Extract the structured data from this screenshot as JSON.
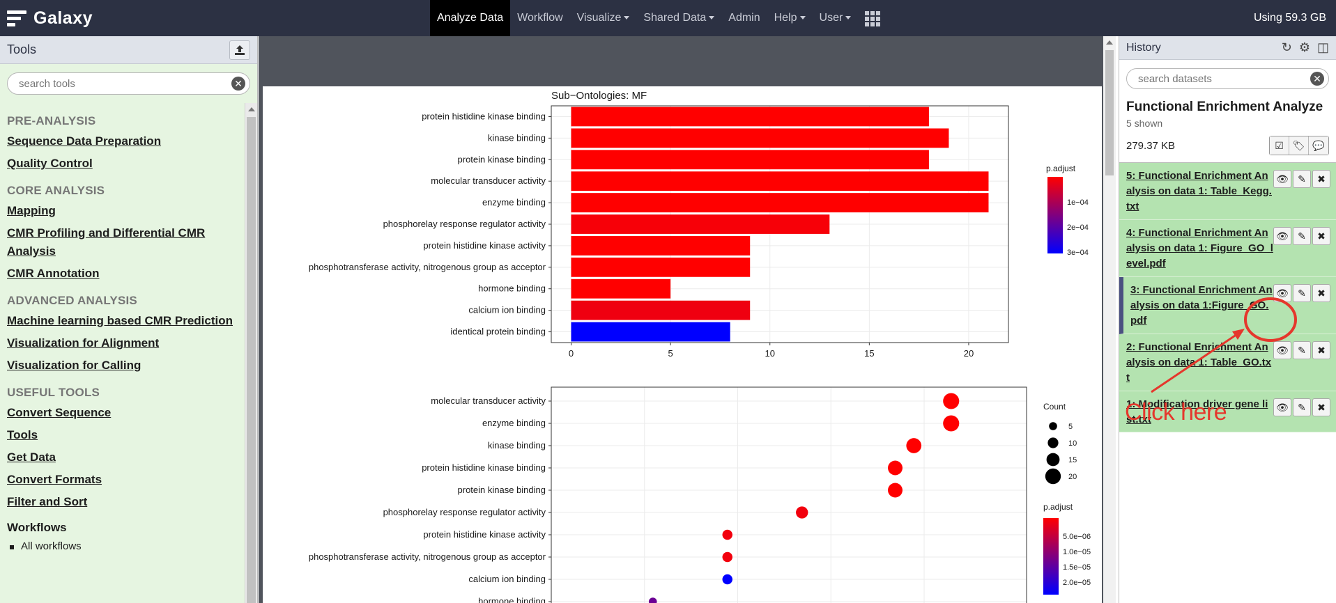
{
  "masthead": {
    "brand": "Galaxy",
    "nav": [
      {
        "label": "Analyze Data",
        "active": true,
        "dropdown": false
      },
      {
        "label": "Workflow",
        "active": false,
        "dropdown": false
      },
      {
        "label": "Visualize",
        "active": false,
        "dropdown": true
      },
      {
        "label": "Shared Data",
        "active": false,
        "dropdown": true
      },
      {
        "label": "Admin",
        "active": false,
        "dropdown": false
      },
      {
        "label": "Help",
        "active": false,
        "dropdown": true
      },
      {
        "label": "User",
        "active": false,
        "dropdown": true
      }
    ],
    "quota": "Using 59.3 GB"
  },
  "tools": {
    "title": "Tools",
    "search_placeholder": "search tools",
    "sections": [
      {
        "name": "PRE-ANALYSIS",
        "links": [
          "Sequence Data Preparation",
          "Quality Control"
        ]
      },
      {
        "name": "CORE ANALYSIS",
        "links": [
          "Mapping",
          "CMR Profiling and Differential CMR Analysis",
          "CMR Annotation"
        ]
      },
      {
        "name": "ADVANCED ANALYSIS",
        "links": [
          "Machine learning based CMR Prediction",
          "Visualization for Alignment",
          "Visualization for Calling"
        ]
      },
      {
        "name": "USEFUL TOOLS",
        "links": [
          "Convert Sequence",
          "Tools",
          "Get Data",
          "Convert Formats",
          "Filter and Sort"
        ]
      }
    ],
    "workflows_label": "Workflows",
    "all_workflows_label": "All workflows"
  },
  "history": {
    "title": "History",
    "search_placeholder": "search datasets",
    "name": "Functional Enrichment Analyze",
    "shown": "5 shown",
    "size": "279.37 KB",
    "datasets": [
      {
        "title": "5: Functional Enrichment Analysis on data 1: Table_Kegg.txt",
        "selected": false
      },
      {
        "title": "4: Functional Enrichment Analysis on data 1: Figure_GO_level.pdf",
        "selected": false
      },
      {
        "title": "3: Functional Enrichment Analysis on data 1:Figure_GO.pdf",
        "selected": true
      },
      {
        "title": "2: Functional Enrichment Analysis on data 1: Table_GO.txt",
        "selected": false
      },
      {
        "title": "1: Modification driver gene list.txt",
        "selected": false
      }
    ]
  },
  "annotation": {
    "text": "Click here",
    "color": "#e5372c"
  },
  "chart_data": [
    {
      "type": "bar",
      "title": "Sub−Ontologies: MF",
      "categories": [
        "protein histidine kinase binding",
        "kinase binding",
        "protein kinase binding",
        "molecular transducer activity",
        "enzyme binding",
        "phosphorelay response regulator activity",
        "protein histidine kinase activity",
        "phosphotransferase activity, nitrogenous group as acceptor",
        "hormone binding",
        "calcium ion binding",
        "identical protein binding"
      ],
      "values": [
        18,
        19,
        18,
        21,
        21,
        13,
        9,
        9,
        5,
        9,
        8
      ],
      "p_adjust": [
        1e-05,
        1e-05,
        1e-05,
        1e-05,
        1e-05,
        2e-05,
        1e-05,
        1e-05,
        1e-05,
        3e-05,
        0.00032
      ],
      "xlim": [
        -1,
        22
      ],
      "xticks": [
        0,
        5,
        10,
        15,
        20
      ],
      "legend": {
        "title": "p.adjust",
        "ticks": [
          "1e−04",
          "2e−04",
          "3e−04"
        ],
        "position": "right"
      },
      "grid": true
    },
    {
      "type": "scatter",
      "categories": [
        "molecular transducer activity",
        "enzyme binding",
        "kinase binding",
        "protein histidine kinase binding",
        "protein kinase binding",
        "phosphorelay response regulator activity",
        "protein histidine kinase activity",
        "phosphotransferase activity, nitrogenous group as acceptor",
        "calcium ion binding",
        "hormone binding"
      ],
      "count": [
        21,
        21,
        19,
        18,
        18,
        13,
        9,
        9,
        9,
        5
      ],
      "p_adjust": [
        1e-06,
        1e-06,
        1e-06,
        1e-06,
        1e-06,
        2e-06,
        2e-06,
        2e-06,
        2e-05,
        1.2e-05
      ],
      "size_legend": {
        "title": "Count",
        "ticks": [
          "5",
          "10",
          "15",
          "20"
        ]
      },
      "color_legend": {
        "title": "p.adjust",
        "ticks": [
          "5.0e−06",
          "1.0e−05",
          "1.5e−05",
          "2.0e−05"
        ]
      },
      "legend_position": "right",
      "grid": true
    }
  ]
}
